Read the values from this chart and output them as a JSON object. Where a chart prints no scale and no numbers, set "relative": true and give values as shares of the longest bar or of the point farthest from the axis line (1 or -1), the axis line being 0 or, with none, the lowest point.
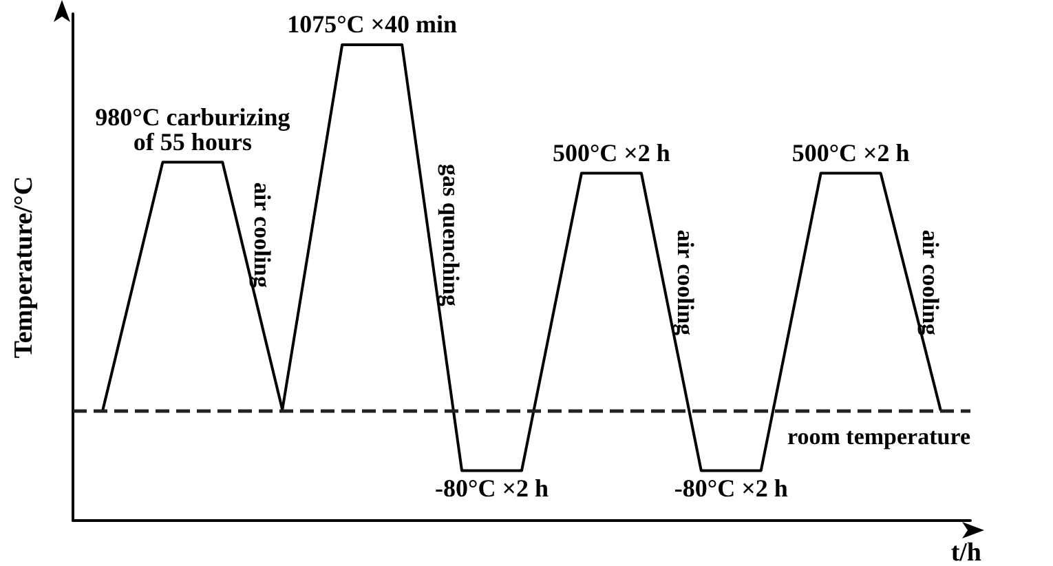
{
  "chart_data": {
    "type": "line",
    "relative": true,
    "xlabel": "t/h",
    "ylabel": "Temperature/°C",
    "grid": false,
    "marker": "none",
    "line_style": "solid",
    "categories": [
      null,
      null,
      null,
      null,
      null,
      null,
      null,
      null,
      null,
      null,
      null,
      null,
      null,
      null,
      null
    ],
    "series": [
      {
        "color": "#000000",
        "values": [
          0.233,
          0.753,
          0.753,
          0.233,
          1,
          1,
          0.105,
          0.105,
          0.73,
          0.73,
          0.105,
          0.105,
          0.73,
          0.73,
          0.233
        ]
      }
    ],
    "ref_lines": [
      {
        "axis": "y",
        "value": 0.233,
        "label": "room temperature",
        "line_style": "dashed",
        "color": "#222222"
      }
    ],
    "annotations": [
      "980°C carburizing\nof 55 hours",
      "1075°C ×40 min",
      "500°C ×2 h",
      "500°C ×2 h",
      "-80°C ×2 h",
      "-80°C ×2 h",
      "air cooling",
      "gas quenching",
      "air cooling",
      "air cooling"
    ]
  }
}
